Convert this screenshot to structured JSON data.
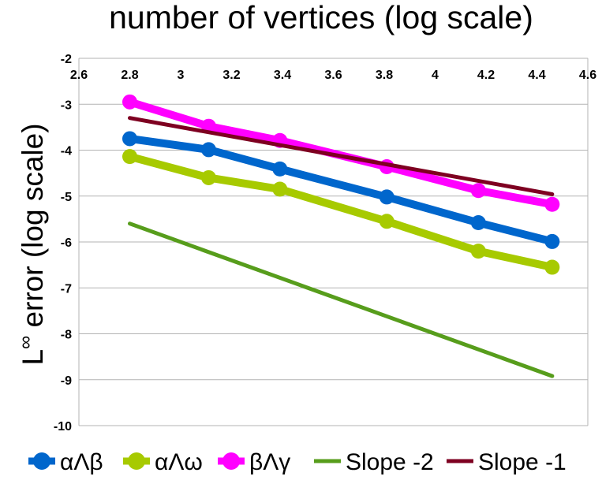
{
  "chart_data": {
    "type": "line",
    "title": "number of vertices (log scale)",
    "xlabel": "number of vertices (log scale)",
    "ylabel": "L∞ error (log scale)",
    "ylabel_main": "L",
    "ylabel_sup": "∞",
    "ylabel_rest": " error (log scale)",
    "xlim": [
      2.6,
      4.6
    ],
    "ylim": [
      -10,
      -2
    ],
    "x_ticks": [
      2.6,
      2.8,
      3,
      3.2,
      3.4,
      3.6,
      3.8,
      4,
      4.2,
      4.4,
      4.6
    ],
    "x_tick_labels": [
      "2.6",
      "2.8",
      "3",
      "3.2",
      "3.4",
      "3.6",
      "3.8",
      "4",
      "4.2",
      "4.4",
      "4.6"
    ],
    "y_ticks": [
      -2,
      -3,
      -4,
      -5,
      -6,
      -7,
      -8,
      -9,
      -10
    ],
    "y_tick_labels": [
      "-2",
      "-3",
      "-4",
      "-5",
      "-6",
      "-7",
      "-8",
      "-9",
      "-10"
    ],
    "x_axis_position": "top",
    "grid": true,
    "legend_position": "bottom",
    "series": [
      {
        "name": "αΛβ",
        "color": "#0066cc",
        "markers": true,
        "x": [
          2.8,
          3.11,
          3.39,
          3.81,
          4.17,
          4.46
        ],
        "y": [
          -3.75,
          -3.99,
          -4.41,
          -5.02,
          -5.58,
          -5.99
        ]
      },
      {
        "name": "αΛω",
        "color": "#a7ca00",
        "markers": true,
        "x": [
          2.8,
          3.11,
          3.39,
          3.81,
          4.17,
          4.46
        ],
        "y": [
          -4.14,
          -4.6,
          -4.85,
          -5.55,
          -6.2,
          -6.55
        ]
      },
      {
        "name": "βΛγ",
        "color": "#ff00ff",
        "markers": true,
        "x": [
          2.8,
          3.11,
          3.39,
          3.81,
          4.17,
          4.46
        ],
        "y": [
          -2.95,
          -3.48,
          -3.79,
          -4.36,
          -4.88,
          -5.18
        ]
      },
      {
        "name": "Slope -2",
        "color": "#579d1c",
        "markers": false,
        "x": [
          2.8,
          4.46
        ],
        "y": [
          -5.6,
          -8.92
        ]
      },
      {
        "name": "Slope -1",
        "color": "#7e0021",
        "markers": false,
        "x": [
          2.8,
          4.46
        ],
        "y": [
          -3.3,
          -4.96
        ]
      }
    ]
  }
}
